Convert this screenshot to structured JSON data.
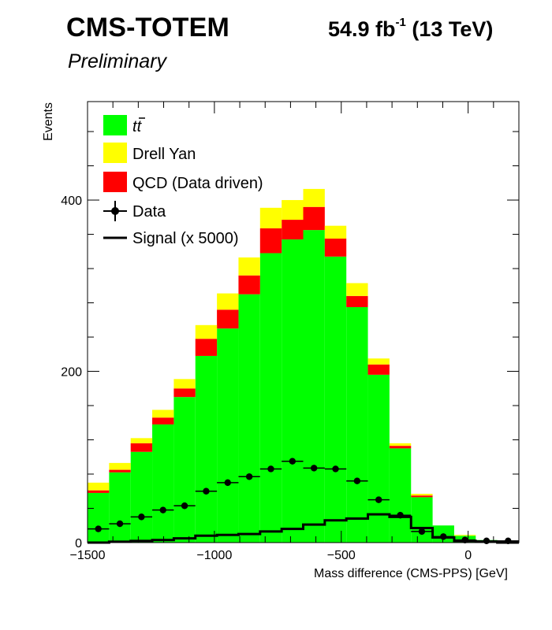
{
  "header": {
    "experiment": "CMS-TOTEM",
    "status": "Preliminary",
    "lumi_value": "54.9 fb",
    "lumi_exp": "-1",
    "lumi_energy": " (13 TeV)"
  },
  "colors": {
    "ttbar": "#00ff00",
    "drell_yan": "#ffff00",
    "qcd": "#ff0000",
    "data": "#000000",
    "signal": "#000000"
  },
  "chart_data": {
    "type": "bar",
    "subtype": "stacked-histogram",
    "xlabel": "Mass difference (CMS-PPS) [GeV]",
    "ylabel": "Events",
    "xlim": [
      -1500,
      200
    ],
    "ylim": [
      0,
      515
    ],
    "x_ticks": [
      -1500,
      -1000,
      -500,
      0
    ],
    "x_tick_labels": [
      "−1500",
      "−1000",
      "−500",
      "0"
    ],
    "y_ticks": [
      0,
      200,
      400
    ],
    "y_tick_labels": [
      "0",
      "200",
      "400"
    ],
    "bin_width": 85,
    "bin_edges": [
      -1500,
      -1415,
      -1330,
      -1245,
      -1160,
      -1075,
      -990,
      -905,
      -820,
      -735,
      -650,
      -565,
      -480,
      -395,
      -310,
      -225,
      -140,
      -55,
      30,
      115,
      200
    ],
    "legend_position": "top-left",
    "legend": [
      {
        "key": "ttbar",
        "label": "t",
        "kind": "fill"
      },
      {
        "key": "drell_yan",
        "label": "Drell Yan",
        "kind": "fill"
      },
      {
        "key": "qcd",
        "label": "QCD (Data driven)",
        "kind": "fill"
      },
      {
        "key": "data",
        "label": "Data",
        "kind": "marker"
      },
      {
        "key": "signal",
        "label": "Signal (x 5000)",
        "kind": "line"
      }
    ],
    "series": [
      {
        "key": "ttbar",
        "name": "tt̄",
        "values": [
          58,
          82,
          106,
          138,
          170,
          218,
          250,
          290,
          338,
          354,
          365,
          334,
          275,
          196,
          110,
          53,
          20,
          8,
          3,
          2
        ]
      },
      {
        "key": "qcd",
        "name": "QCD (Data driven)",
        "values": [
          3,
          3,
          10,
          8,
          10,
          20,
          22,
          22,
          29,
          23,
          27,
          21,
          13,
          12,
          3,
          2,
          0,
          0,
          0,
          0
        ]
      },
      {
        "key": "drell_yan",
        "name": "Drell Yan",
        "values": [
          9,
          8,
          6,
          9,
          11,
          16,
          19,
          21,
          24,
          23,
          21,
          15,
          15,
          7,
          3,
          2,
          0,
          1,
          0,
          0
        ]
      }
    ],
    "data_points": {
      "name": "Data",
      "x": [
        -1457.5,
        -1372.5,
        -1287.5,
        -1202.5,
        -1117.5,
        -1032.5,
        -947.5,
        -862.5,
        -777.5,
        -692.5,
        -607.5,
        -522.5,
        -437.5,
        -352.5,
        -267.5,
        -182.5,
        -97.5,
        -12.5,
        72.5,
        157.5
      ],
      "y": [
        16,
        22,
        30,
        38,
        43,
        60,
        70,
        77,
        86,
        95,
        87,
        86,
        72,
        50,
        32,
        13,
        7,
        3,
        2,
        2
      ]
    },
    "signal": {
      "name": "Signal (x 5000)",
      "values": [
        0,
        1,
        2,
        3,
        5,
        8,
        9,
        10,
        13,
        16,
        21,
        26,
        28,
        33,
        30,
        17,
        6,
        2,
        1,
        0
      ]
    }
  }
}
